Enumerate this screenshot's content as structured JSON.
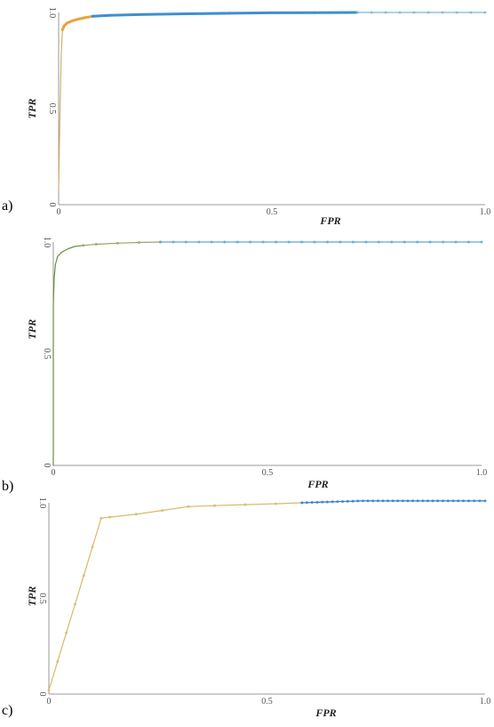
{
  "chart_data": [
    {
      "type": "line",
      "panel_label": "a)",
      "xlabel": "FPR",
      "ylabel": "TPR",
      "xlim": [
        0,
        1
      ],
      "ylim": [
        0,
        1
      ],
      "x_ticks": [
        "0",
        "0.5",
        "1.0"
      ],
      "y_ticks": [
        "0",
        "0.5",
        "1.0"
      ],
      "grid": false,
      "series": [
        {
          "color": "#d4b06a",
          "x": [
            0,
            0.003,
            0.006,
            0.009
          ],
          "y": [
            0.08,
            0.45,
            0.78,
            0.91
          ]
        },
        {
          "color": "#e8a33d",
          "marker": "dot",
          "x": [
            0.009,
            0.013,
            0.02,
            0.03,
            0.045,
            0.06,
            0.08
          ],
          "y": [
            0.91,
            0.93,
            0.945,
            0.955,
            0.965,
            0.972,
            0.98
          ]
        },
        {
          "color": "#3d8fd1",
          "marker": "dot",
          "x": [
            0.08,
            0.12,
            0.2,
            0.3,
            0.4,
            0.5,
            0.6,
            0.7
          ],
          "y": [
            0.98,
            0.985,
            0.99,
            0.993,
            0.996,
            0.998,
            0.999,
            1.0
          ]
        },
        {
          "color": "#7fb3dd",
          "marker": "sparse",
          "x": [
            0.7,
            0.8,
            0.9,
            1.0
          ],
          "y": [
            1.0,
            1.0,
            1.0,
            1.0
          ]
        }
      ]
    },
    {
      "type": "line",
      "panel_label": "b)",
      "xlabel": "FPR",
      "ylabel": "TPR",
      "xlim": [
        0,
        1
      ],
      "ylim": [
        0,
        1
      ],
      "x_ticks": [
        "0",
        "0.5",
        "1.0"
      ],
      "y_ticks": [
        "0",
        "0.5",
        "1.0"
      ],
      "grid": false,
      "series": [
        {
          "color": "#6b8e3a",
          "x": [
            0,
            0,
            0.002,
            0.005,
            0.01,
            0.02,
            0.035,
            0.05,
            0.07
          ],
          "y": [
            0,
            0.72,
            0.84,
            0.9,
            0.935,
            0.955,
            0.97,
            0.98,
            0.985
          ]
        },
        {
          "color": "#9fa36a",
          "marker": "dot",
          "x": [
            0.07,
            0.1,
            0.15,
            0.2,
            0.25
          ],
          "y": [
            0.985,
            0.99,
            0.995,
            0.998,
            1.0
          ]
        },
        {
          "color": "#5aa7dc",
          "marker": "sparse",
          "x": [
            0.25,
            0.4,
            0.55,
            0.7,
            0.85,
            1.0
          ],
          "y": [
            1.0,
            1.0,
            1.0,
            1.0,
            1.0,
            1.0
          ]
        }
      ]
    },
    {
      "type": "line",
      "panel_label": "c)",
      "xlabel": "FPR",
      "ylabel": "TPR",
      "xlim": [
        0,
        1
      ],
      "ylim": [
        0,
        1
      ],
      "x_ticks": [
        "0",
        "0.5",
        "1.0"
      ],
      "y_ticks": [
        "0",
        "0.5",
        "1.0"
      ],
      "grid": false,
      "series": [
        {
          "color": "#d9b86a",
          "marker": "dot",
          "x": [
            0,
            0.02,
            0.04,
            0.06,
            0.08,
            0.1,
            0.12,
            0.14,
            0.2,
            0.26,
            0.32,
            0.38,
            0.45,
            0.52,
            0.58
          ],
          "y": [
            0.02,
            0.17,
            0.32,
            0.47,
            0.62,
            0.77,
            0.92,
            0.925,
            0.94,
            0.96,
            0.98,
            0.985,
            0.99,
            0.995,
            1.0
          ]
        },
        {
          "color": "#2f80c8",
          "marker": "dense",
          "x": [
            0.58,
            0.65,
            0.72,
            0.8,
            0.88,
            0.95,
            1.0
          ],
          "y": [
            1.0,
            1.005,
            1.01,
            1.01,
            1.01,
            1.01,
            1.01
          ]
        }
      ]
    }
  ]
}
